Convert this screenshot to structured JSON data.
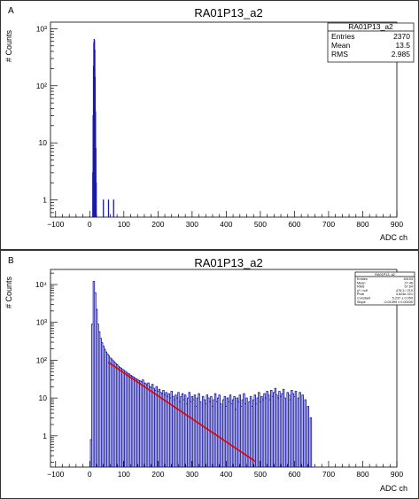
{
  "chart_data": [
    {
      "type": "histogram",
      "panel_label": "A",
      "title": "RA01P13_a2",
      "xlabel": "ADC ch",
      "ylabel": "# Counts",
      "xlim": [
        -115,
        900
      ],
      "ylim": [
        0.5,
        1300
      ],
      "log_y": true,
      "x_ticks": [
        -100,
        0,
        100,
        200,
        300,
        400,
        500,
        600,
        700,
        800,
        900
      ],
      "y_ticks": [
        {
          "value": 1,
          "label": "1"
        },
        {
          "value": 10,
          "label": "10"
        },
        {
          "value": 100,
          "label": "10²"
        },
        {
          "value": 1000,
          "label": "10³"
        }
      ],
      "bin_width": 1,
      "series": [
        {
          "color": "#1a1aa8",
          "points": [
            [
              9,
              3
            ],
            [
              10,
              30
            ],
            [
              11,
              220
            ],
            [
              12,
              560
            ],
            [
              13,
              650
            ],
            [
              14,
              620
            ],
            [
              15,
              420
            ],
            [
              16,
              140
            ],
            [
              17,
              35
            ],
            [
              18,
              8
            ],
            [
              19,
              2
            ],
            [
              40,
              1
            ],
            [
              55,
              1
            ],
            [
              70,
              1
            ]
          ]
        }
      ],
      "stats": {
        "title": "RA01P13_a2",
        "rows": [
          {
            "label": "Entries",
            "value": "2370"
          },
          {
            "label": "Mean",
            "value": "13.5"
          },
          {
            "label": "RMS",
            "value": "2.985"
          }
        ]
      }
    },
    {
      "type": "histogram",
      "panel_label": "B",
      "title": "RA01P13_a2",
      "xlabel": "ADC ch",
      "ylabel": "# Counts",
      "xlim": [
        -115,
        900
      ],
      "ylim": [
        0.15,
        25000
      ],
      "log_y": true,
      "x_ticks": [
        -100,
        0,
        100,
        200,
        300,
        400,
        500,
        600,
        700,
        800,
        900
      ],
      "y_ticks": [
        {
          "value": 1,
          "label": "1"
        },
        {
          "value": 10,
          "label": "10"
        },
        {
          "value": 100,
          "label": "10²"
        },
        {
          "value": 1000,
          "label": "10³"
        },
        {
          "value": 10000,
          "label": "10⁴"
        }
      ],
      "bin_width": 4,
      "series": [
        {
          "color": "#1a1aa8",
          "points": [
            [
              4,
              0.8
            ],
            [
              8,
              900
            ],
            [
              12,
              12000
            ],
            [
              16,
              6000
            ],
            [
              20,
              2200
            ],
            [
              24,
              900
            ],
            [
              28,
              560
            ],
            [
              32,
              380
            ],
            [
              36,
              290
            ],
            [
              40,
              235
            ],
            [
              44,
              195
            ],
            [
              48,
              165
            ],
            [
              52,
              145
            ],
            [
              56,
              130
            ],
            [
              60,
              115
            ],
            [
              64,
              108
            ],
            [
              68,
              98
            ],
            [
              72,
              90
            ],
            [
              76,
              82
            ],
            [
              80,
              76
            ],
            [
              84,
              70
            ],
            [
              88,
              65
            ],
            [
              92,
              61
            ],
            [
              96,
              57
            ],
            [
              100,
              54
            ],
            [
              104,
              51
            ],
            [
              108,
              48
            ],
            [
              112,
              45
            ],
            [
              116,
              43
            ],
            [
              120,
              40
            ],
            [
              124,
              38
            ],
            [
              128,
              36
            ],
            [
              132,
              34
            ],
            [
              136,
              32
            ],
            [
              140,
              31
            ],
            [
              144,
              29
            ],
            [
              148,
              28
            ],
            [
              152,
              27
            ],
            [
              156,
              30
            ],
            [
              160,
              25
            ],
            [
              164,
              24
            ],
            [
              168,
              22
            ],
            [
              172,
              25
            ],
            [
              176,
              20
            ],
            [
              180,
              19
            ],
            [
              184,
              23
            ],
            [
              188,
              18
            ],
            [
              192,
              16
            ],
            [
              196,
              20
            ],
            [
              200,
              15
            ],
            [
              204,
              17
            ],
            [
              208,
              14
            ],
            [
              212,
              13
            ],
            [
              216,
              16
            ],
            [
              220,
              12
            ],
            [
              224,
              14
            ],
            [
              228,
              11
            ],
            [
              232,
              13
            ],
            [
              236,
              10
            ],
            [
              240,
              15
            ],
            [
              244,
              11
            ],
            [
              248,
              9
            ],
            [
              252,
              12
            ],
            [
              256,
              10
            ],
            [
              260,
              14
            ],
            [
              264,
              8
            ],
            [
              268,
              11
            ],
            [
              272,
              13
            ],
            [
              276,
              9
            ],
            [
              280,
              12
            ],
            [
              284,
              7
            ],
            [
              288,
              10
            ],
            [
              292,
              14
            ],
            [
              296,
              8
            ],
            [
              300,
              11
            ],
            [
              304,
              9
            ],
            [
              308,
              12
            ],
            [
              312,
              6
            ],
            [
              316,
              10
            ],
            [
              320,
              13
            ],
            [
              324,
              8
            ],
            [
              328,
              0.15
            ],
            [
              332,
              11
            ],
            [
              336,
              9
            ],
            [
              340,
              7
            ],
            [
              344,
              12
            ],
            [
              348,
              10
            ],
            [
              352,
              8
            ],
            [
              356,
              11
            ],
            [
              360,
              6
            ],
            [
              364,
              9
            ],
            [
              368,
              13
            ],
            [
              372,
              8
            ],
            [
              376,
              10
            ],
            [
              380,
              12
            ],
            [
              384,
              7
            ],
            [
              388,
              0.15
            ],
            [
              392,
              9
            ],
            [
              396,
              11
            ],
            [
              400,
              6
            ],
            [
              404,
              10
            ],
            [
              408,
              8
            ],
            [
              412,
              12
            ],
            [
              416,
              7
            ],
            [
              420,
              9
            ],
            [
              424,
              11
            ],
            [
              428,
              5
            ],
            [
              432,
              10
            ],
            [
              436,
              8
            ],
            [
              440,
              12
            ],
            [
              444,
              6
            ],
            [
              448,
              9
            ],
            [
              452,
              13
            ],
            [
              456,
              7
            ],
            [
              460,
              10
            ],
            [
              464,
              0.15
            ],
            [
              468,
              8
            ],
            [
              472,
              11
            ],
            [
              476,
              6
            ],
            [
              480,
              9
            ],
            [
              484,
              12
            ],
            [
              488,
              7
            ],
            [
              492,
              10
            ],
            [
              496,
              14
            ],
            [
              500,
              8
            ],
            [
              504,
              11
            ],
            [
              508,
              9
            ],
            [
              512,
              13
            ],
            [
              516,
              10
            ],
            [
              520,
              15
            ],
            [
              524,
              12
            ],
            [
              528,
              9
            ],
            [
              532,
              16
            ],
            [
              536,
              11
            ],
            [
              540,
              14
            ],
            [
              544,
              18
            ],
            [
              548,
              12
            ],
            [
              552,
              10
            ],
            [
              556,
              15
            ],
            [
              560,
              11
            ],
            [
              564,
              13
            ],
            [
              568,
              17
            ],
            [
              572,
              10
            ],
            [
              576,
              0.15
            ],
            [
              580,
              14
            ],
            [
              584,
              12
            ],
            [
              588,
              9
            ],
            [
              592,
              16
            ],
            [
              596,
              13
            ],
            [
              600,
              11
            ],
            [
              604,
              15
            ],
            [
              608,
              0.15
            ],
            [
              612,
              10
            ],
            [
              616,
              14
            ],
            [
              620,
              0.15
            ],
            [
              624,
              12
            ],
            [
              628,
              0.15
            ],
            [
              632,
              9
            ],
            [
              636,
              0.15
            ],
            [
              640,
              6
            ],
            [
              644,
              0.15
            ],
            [
              648,
              3
            ],
            [
              652,
              0.15
            ]
          ]
        }
      ],
      "fit": {
        "color": "#e00000",
        "function": "expo",
        "constant": 5.237,
        "slope": -0.01399,
        "x_range": [
          55,
          485
        ]
      },
      "stats": {
        "title": "RA01P13_a2",
        "rows": [
          {
            "label": "Entries",
            "value": "49193"
          },
          {
            "label": "Mean",
            "value": "27.46"
          },
          {
            "label": "RMS",
            "value": "57.64"
          },
          {
            "label": "χ² / ndf",
            "value": "476.3 / 219"
          },
          {
            "label": "Prob",
            "value": "3.623e-021"
          },
          {
            "label": "Constant",
            "value": "5.237 ± 0.059"
          },
          {
            "label": "Slope",
            "value": "-0.01399 ± 0.00039"
          }
        ]
      }
    }
  ]
}
